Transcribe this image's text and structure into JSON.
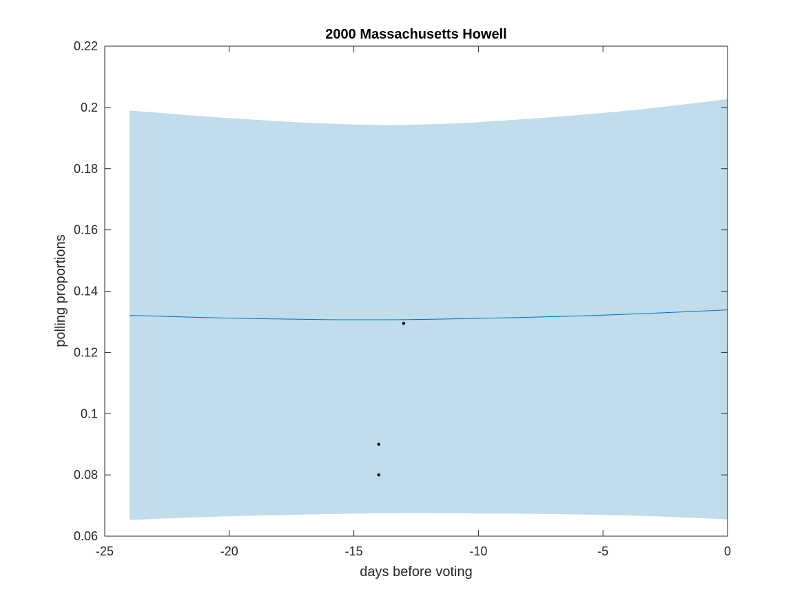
{
  "chart_data": {
    "type": "line",
    "title": "2000 Massachusetts Howell",
    "xlabel": "days before voting",
    "ylabel": "polling proportions",
    "xlim": [
      -25,
      0
    ],
    "ylim": [
      0.06,
      0.22
    ],
    "xticks": [
      -25,
      -20,
      -15,
      -10,
      -5,
      0
    ],
    "yticks": [
      0.06,
      0.08,
      0.1,
      0.12,
      0.14,
      0.16,
      0.18,
      0.2,
      0.22
    ],
    "xtick_labels": [
      "-25",
      "-20",
      "-15",
      "-10",
      "-5",
      "0"
    ],
    "ytick_labels": [
      "0.06",
      "0.08",
      "0.1",
      "0.12",
      "0.14",
      "0.16",
      "0.18",
      "0.2",
      "0.22"
    ],
    "grid": false,
    "series": [
      {
        "kind": "band",
        "x": [
          -24,
          -20,
          -16,
          -13,
          -10,
          -6,
          -3,
          0
        ],
        "upper": [
          0.199,
          0.1965,
          0.1947,
          0.1943,
          0.1952,
          0.1975,
          0.1998,
          0.2027
        ],
        "lower": [
          0.0653,
          0.0665,
          0.0672,
          0.0675,
          0.0674,
          0.0671,
          0.0665,
          0.0655
        ],
        "color": "#c1dcea"
      },
      {
        "kind": "line",
        "x": [
          -24,
          -20,
          -16,
          -13,
          -10,
          -6,
          -3,
          0
        ],
        "y": [
          0.1321,
          0.1312,
          0.1307,
          0.1307,
          0.1311,
          0.1319,
          0.1328,
          0.1339
        ],
        "color": "#0072bd"
      },
      {
        "kind": "points",
        "x": [
          -13,
          -14,
          -14
        ],
        "y": [
          0.1295,
          0.09,
          0.08
        ],
        "color": "#000000"
      }
    ]
  }
}
